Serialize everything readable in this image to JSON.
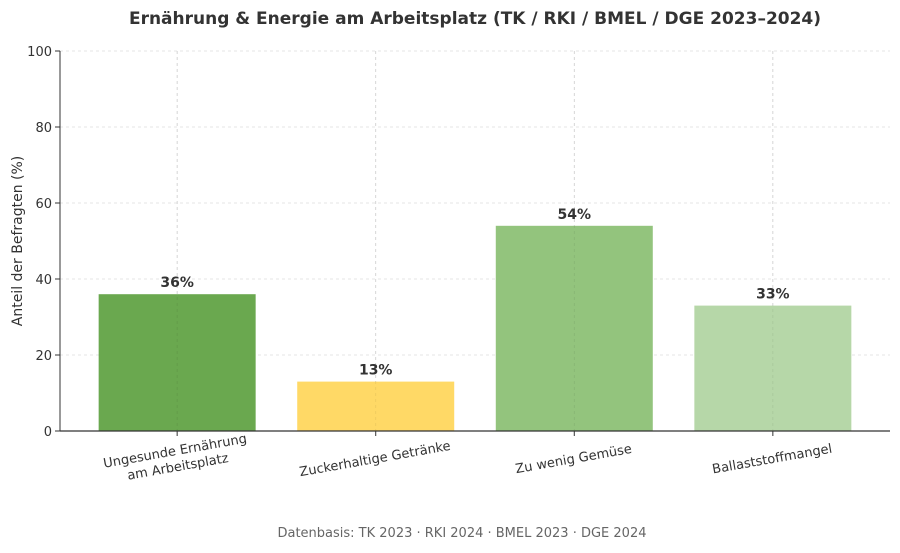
{
  "chart_data": {
    "type": "bar",
    "title": "Ernährung & Energie am Arbeitsplatz (TK / RKI / BMEL / DGE 2023–2024)",
    "xlabel": "",
    "ylabel": "Anteil der Befragten (%)",
    "ylim": [
      0,
      100
    ],
    "yticks": [
      0,
      20,
      40,
      60,
      80,
      100
    ],
    "grid": true,
    "categories": [
      [
        "Ungesunde Ernährung",
        "am Arbeitsplatz"
      ],
      [
        "Zuckerhaltige Getränke"
      ],
      [
        "Zu wenig Gemüse"
      ],
      [
        "Ballaststoffmangel"
      ]
    ],
    "values": [
      36,
      13,
      54,
      33
    ],
    "value_labels": [
      "36%",
      "13%",
      "54%",
      "33%"
    ],
    "colors": [
      "#6aa84f",
      "#ffd966",
      "#93c47d",
      "#b6d7a8"
    ],
    "footnote": "Datenbasis: TK 2023 · RKI 2024 · BMEL 2023 · DGE 2024"
  }
}
